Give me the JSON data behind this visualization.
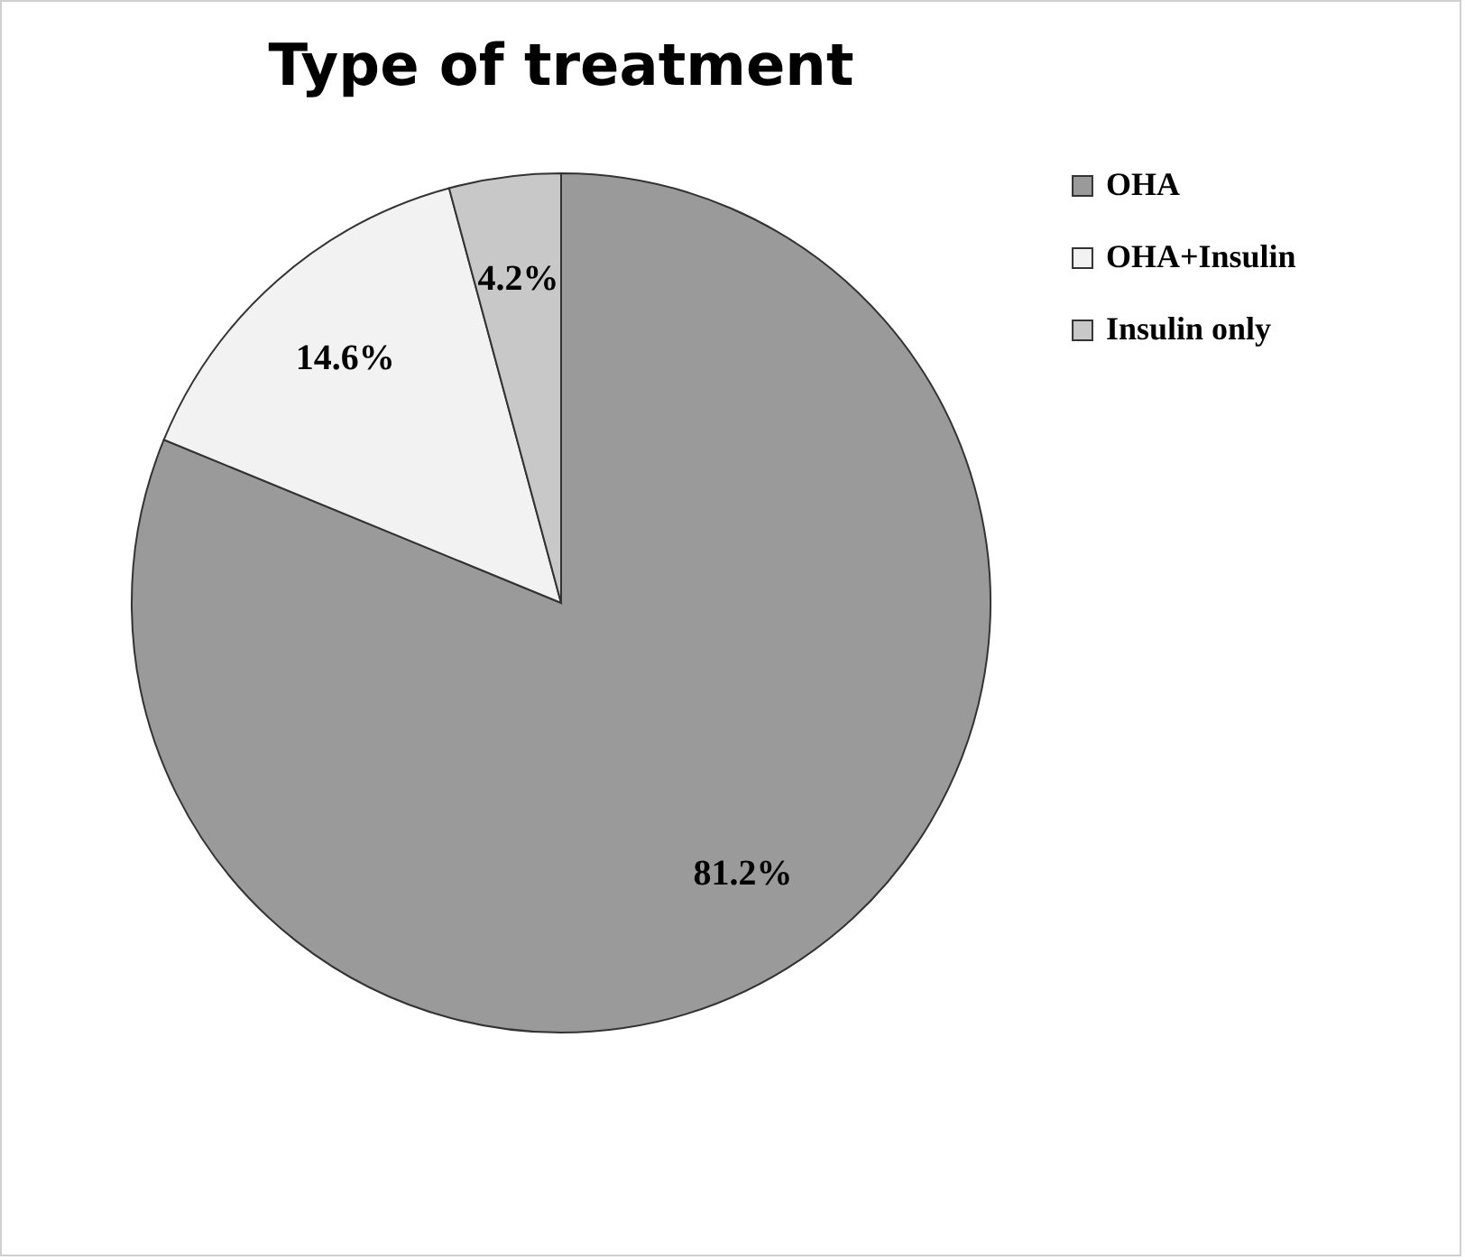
{
  "chart_data": {
    "type": "pie",
    "title": "Type of treatment",
    "categories": [
      "OHA",
      "OHA+Insulin",
      "Insulin only"
    ],
    "values": [
      81.2,
      14.6,
      4.2
    ],
    "colors": [
      "#9a9a9a",
      "#f2f2f2",
      "#c8c8c8"
    ],
    "value_labels": [
      "81.2%",
      "14.6%",
      "4.2%"
    ],
    "legend": "right"
  }
}
